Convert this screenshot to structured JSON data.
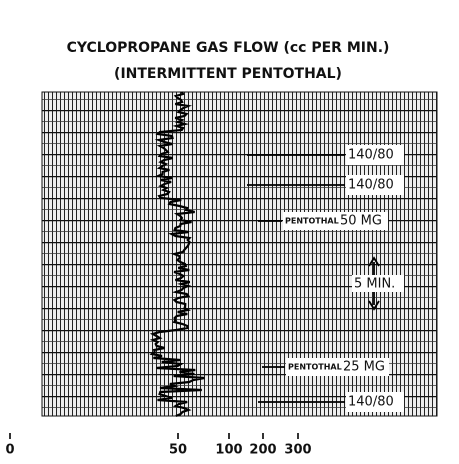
{
  "title": {
    "line1": "CYCLOPROPANE GAS FLOW (cc PER MIN.)",
    "line2": "(INTERMITTENT PENTOTHAL)"
  },
  "annotations": {
    "bp1": "140/80",
    "bp2": "140/80",
    "pentothal1_drug": "PENTOTHAL",
    "pentothal1_dose": "50 MG",
    "interval": "5 MIN.",
    "pentothal2_drug": "PENTOTHAL",
    "pentothal2_dose": "25 MG",
    "bp3": "140/80"
  },
  "axis": {
    "ticks": [
      "0",
      "50",
      "100",
      "200",
      "300"
    ]
  }
}
